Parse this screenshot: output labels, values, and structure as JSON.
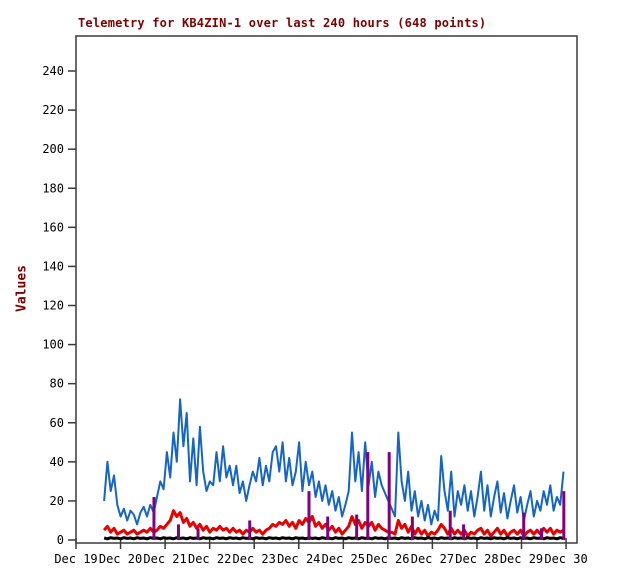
{
  "chart_data": {
    "type": "line",
    "title": "Telemetry for KB4ZIN-1 over last 240 hours (648 points)",
    "ylabel": "Values",
    "xlabel": "",
    "grid": false,
    "legend": null,
    "ylim": [
      0,
      257
    ],
    "y_ticks": [
      0,
      20,
      40,
      60,
      80,
      100,
      120,
      140,
      160,
      180,
      200,
      220,
      240
    ],
    "x_tick_labels": [
      "Dec 19",
      "Dec 20",
      "Dec 21",
      "Dec 22",
      "Dec 23",
      "Dec 24",
      "Dec 25",
      "Dec 26",
      "Dec 27",
      "Dec 28",
      "Dec 29",
      "Dec 30"
    ],
    "x_tick_positions_days": [
      0,
      1,
      2,
      3,
      4,
      5,
      6,
      7,
      8,
      9,
      10,
      11
    ],
    "colors": {
      "title": "#800000",
      "axis": "#3a3a3a",
      "tick_text": "#000000",
      "series_blue": "#1565c8",
      "series_red": "#e60000",
      "series_black": "#000000",
      "series_purple": "#800080"
    },
    "series": [
      {
        "name": "channel-blue",
        "color": "#1565c8",
        "stroke_width": 2,
        "t_start": 0.63,
        "dt": 0.0742,
        "values": [
          20,
          40,
          25,
          33,
          18,
          12,
          16,
          10,
          15,
          13,
          8,
          14,
          17,
          12,
          18,
          14,
          22,
          30,
          26,
          45,
          32,
          55,
          40,
          72,
          48,
          65,
          30,
          52,
          28,
          58,
          35,
          25,
          30,
          28,
          45,
          30,
          48,
          32,
          38,
          28,
          38,
          24,
          30,
          20,
          28,
          35,
          30,
          42,
          28,
          38,
          30,
          45,
          48,
          35,
          50,
          30,
          42,
          28,
          35,
          50,
          25,
          40,
          28,
          35,
          22,
          30,
          20,
          28,
          18,
          25,
          15,
          22,
          12,
          18,
          25,
          55,
          30,
          45,
          25,
          50,
          28,
          40,
          22,
          35,
          28,
          24,
          20,
          16,
          12,
          55,
          30,
          20,
          35,
          15,
          25,
          12,
          20,
          10,
          18,
          8,
          15,
          10,
          43,
          25,
          15,
          35,
          12,
          25,
          18,
          28,
          15,
          25,
          12,
          22,
          35,
          15,
          28,
          12,
          22,
          30,
          14,
          24,
          11,
          20,
          28,
          14,
          22,
          10,
          18,
          25,
          12,
          20,
          15,
          25,
          18,
          28,
          15,
          22,
          18,
          35
        ]
      },
      {
        "name": "channel-red",
        "color": "#e60000",
        "stroke_width": 3,
        "t_start": 0.63,
        "dt": 0.0742,
        "values": [
          5,
          7,
          4,
          6,
          3,
          4,
          5,
          3,
          4,
          5,
          3,
          4,
          5,
          4,
          6,
          4,
          5,
          7,
          6,
          8,
          10,
          15,
          12,
          14,
          9,
          11,
          7,
          9,
          6,
          8,
          5,
          7,
          4,
          6,
          5,
          7,
          5,
          6,
          4,
          6,
          4,
          5,
          3,
          5,
          4,
          6,
          4,
          5,
          3,
          5,
          6,
          8,
          7,
          9,
          8,
          10,
          7,
          9,
          6,
          10,
          8,
          11,
          9,
          12,
          7,
          9,
          6,
          8,
          5,
          7,
          4,
          6,
          3,
          5,
          7,
          12,
          8,
          10,
          6,
          9,
          7,
          9,
          5,
          8,
          6,
          5,
          4,
          4,
          3,
          10,
          6,
          8,
          4,
          7,
          3,
          6,
          3,
          5,
          2,
          4,
          3,
          5,
          8,
          6,
          3,
          6,
          3,
          5,
          3,
          5,
          2,
          4,
          3,
          5,
          6,
          3,
          5,
          2,
          4,
          6,
          3,
          5,
          2,
          4,
          5,
          3,
          5,
          2,
          4,
          5,
          3,
          5,
          3,
          6,
          4,
          6,
          3,
          5,
          4,
          5
        ]
      },
      {
        "name": "channel-black",
        "color": "#000000",
        "stroke_width": 3,
        "t_start": 0.63,
        "dt": 0.0742,
        "values": [
          1,
          0.6,
          1.2,
          0.8,
          1,
          0.6,
          1.2,
          0.8,
          1,
          0.6,
          1.2,
          0.8,
          1,
          0.6,
          1.2,
          0.8,
          1,
          0.6,
          1.2,
          0.8,
          1,
          0.6,
          1.2,
          0.8,
          1,
          0.6,
          1.2,
          0.8,
          1,
          0.6,
          1.2,
          0.8,
          1,
          0.6,
          1.2,
          0.8,
          1,
          0.6,
          1.2,
          0.8,
          1,
          0.6,
          1.2,
          0.8,
          1,
          0.6,
          1.2,
          0.8,
          1,
          0.6,
          1.2,
          0.8,
          1,
          0.6,
          1.2,
          0.8,
          1,
          0.6,
          1.2,
          0.8,
          1,
          0.6,
          1.2,
          0.8,
          1,
          0.6,
          1.2,
          0.8,
          1,
          0.6,
          1.2,
          0.8,
          1,
          0.6,
          1.2,
          0.8,
          1,
          0.6,
          1.2,
          0.8,
          1,
          0.6,
          1.2,
          0.8,
          1,
          0.6,
          1.2,
          0.8,
          1,
          0.6,
          1.2,
          0.8,
          1,
          0.6,
          1.2,
          0.8,
          1,
          0.6,
          1.2,
          0.8,
          1,
          0.6,
          1.2,
          0.8,
          1,
          0.6,
          1.2,
          0.8,
          1,
          0.6,
          1.2,
          0.8,
          1,
          0.6,
          1.2,
          0.8,
          1,
          0.6,
          1.2,
          0.8,
          1,
          0.6,
          1.2,
          0.8,
          1,
          0.6,
          1.2,
          0.8,
          1,
          0.6,
          1.2,
          0.8,
          1,
          0.6,
          1.2,
          0.8,
          1,
          0.6,
          1.2,
          0.8
        ]
      },
      {
        "name": "channel-purple-impulses",
        "type": "impulse",
        "color": "#800080",
        "stroke_width": 3,
        "points": [
          [
            1.75,
            22
          ],
          [
            2.3,
            8
          ],
          [
            2.74,
            6
          ],
          [
            3.9,
            10
          ],
          [
            5.23,
            25
          ],
          [
            5.65,
            12
          ],
          [
            6.3,
            13
          ],
          [
            6.55,
            45
          ],
          [
            7.03,
            45
          ],
          [
            7.55,
            12
          ],
          [
            8.4,
            15
          ],
          [
            8.7,
            8
          ],
          [
            10.05,
            14
          ],
          [
            10.45,
            6
          ],
          [
            10.95,
            25
          ]
        ]
      }
    ]
  }
}
